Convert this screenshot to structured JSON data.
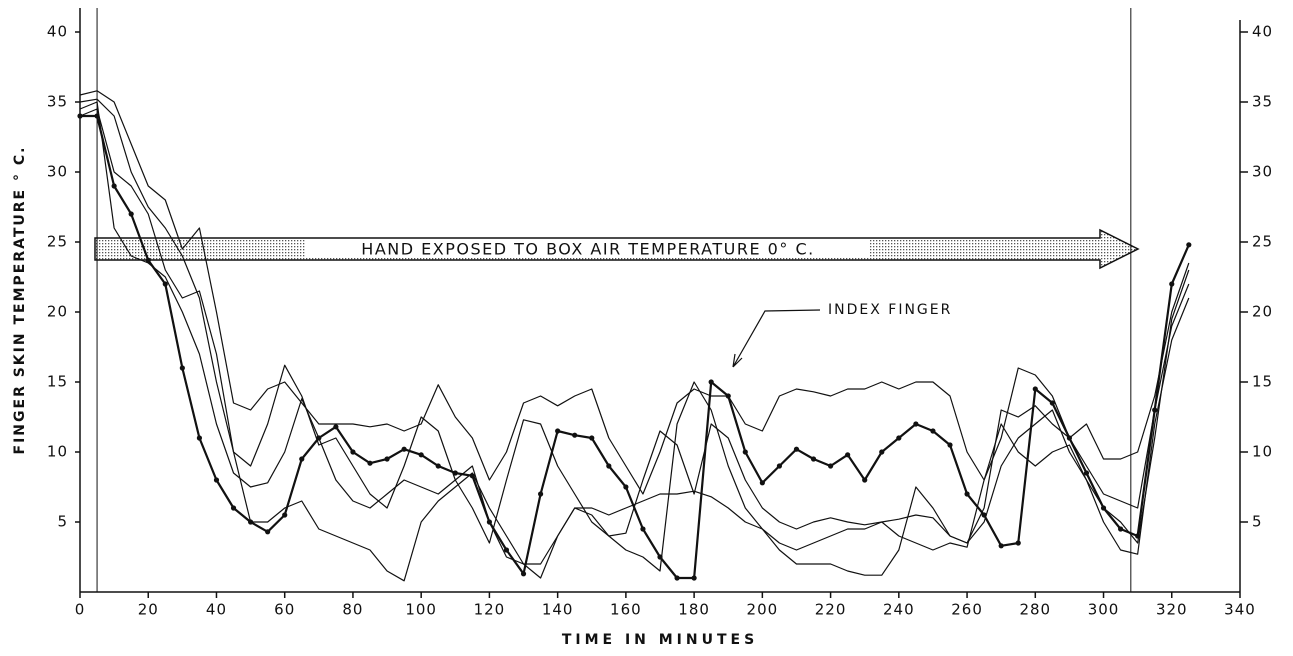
{
  "chart_data": {
    "type": "line",
    "y_label": "FINGER SKIN TEMPERATURE  ° C.",
    "x_label": "TIME IN MINUTES",
    "annotations": [
      "HAND EXPOSED TO BOX AIR TEMPERATURE  0° C.",
      "INDEX FINGER"
    ],
    "x": [
      0,
      5,
      10,
      15,
      20,
      25,
      30,
      35,
      40,
      45,
      50,
      55,
      60,
      65,
      70,
      75,
      80,
      85,
      90,
      95,
      100,
      105,
      110,
      115,
      120,
      125,
      130,
      135,
      140,
      145,
      150,
      155,
      160,
      165,
      170,
      175,
      180,
      185,
      190,
      195,
      200,
      205,
      210,
      215,
      220,
      225,
      230,
      235,
      240,
      245,
      250,
      255,
      260,
      265,
      270,
      275,
      280,
      285,
      290,
      295,
      300,
      305,
      310,
      315,
      320,
      325
    ],
    "vlines": [
      5,
      308
    ],
    "series": [
      {
        "name": "INDEX FINGER",
        "color": "#111111",
        "markers": true,
        "values": [
          34,
          34,
          29,
          27,
          23.7,
          22,
          16,
          11,
          8,
          6,
          5,
          4.3,
          5.5,
          9.5,
          11,
          11.8,
          10,
          9.2,
          9.5,
          10.2,
          9.8,
          9,
          8.5,
          8.3,
          5,
          3,
          1.3,
          7,
          11.5,
          11.2,
          11,
          9,
          7.5,
          4.5,
          2.5,
          1,
          1,
          15,
          14,
          10,
          7.8,
          9,
          10.2,
          9.5,
          9,
          9.8,
          8,
          10,
          11,
          12,
          11.5,
          10.5,
          7,
          5.5,
          3.3,
          3.5,
          14.5,
          13.5,
          11,
          8.5,
          6,
          4.5,
          4,
          13,
          22,
          24.8
        ]
      },
      {
        "color": "#111111",
        "values": [
          35.5,
          35.8,
          35,
          32,
          29,
          28,
          24.5,
          26,
          20,
          13.5,
          13,
          14.5,
          15,
          13.5,
          12,
          12,
          12,
          11.8,
          12,
          11.5,
          12,
          14.8,
          12.5,
          11,
          8,
          10,
          13.5,
          14,
          13.3,
          14,
          14.5,
          11,
          9,
          7,
          10,
          13.5,
          14.5,
          14,
          14,
          12,
          11.5,
          14,
          14.5,
          14.3,
          14,
          14.5,
          14.5,
          15,
          14.5,
          15,
          15,
          14,
          10,
          8,
          11,
          16,
          15.5,
          14,
          11,
          12,
          9.5,
          9.5,
          10,
          14,
          20,
          23.5
        ]
      },
      {
        "color": "#111111",
        "values": [
          35,
          35.2,
          34,
          30,
          27.5,
          26,
          24,
          21,
          15,
          10,
          9,
          12,
          16.2,
          14,
          10.5,
          11,
          9,
          7,
          6,
          9,
          12.5,
          11.5,
          8,
          6,
          3.5,
          8,
          12.3,
          12,
          9,
          7,
          5,
          4,
          3,
          2.5,
          1.5,
          12,
          15,
          13,
          9,
          6,
          4.5,
          3.5,
          3,
          3.5,
          4,
          4.5,
          4.5,
          5,
          5.2,
          5.5,
          5.3,
          4,
          3.5,
          6,
          13,
          12.5,
          13.3,
          12,
          11,
          9,
          7,
          6.5,
          6,
          13,
          19,
          22
        ]
      },
      {
        "color": "#111111",
        "values": [
          34.5,
          35,
          26,
          24,
          23.5,
          22.5,
          20,
          17,
          12,
          8.5,
          7.5,
          7.8,
          10,
          13.8,
          11,
          8,
          6.5,
          6,
          7,
          8,
          7.5,
          7,
          8,
          9,
          5,
          2.5,
          2,
          1,
          4,
          6,
          5.5,
          4,
          4.2,
          8,
          11.5,
          10.5,
          7,
          12,
          11,
          8,
          6,
          5,
          4.5,
          5,
          5.3,
          5,
          4.8,
          5,
          4,
          3.5,
          3,
          3.5,
          3.2,
          8,
          12,
          10,
          9,
          10,
          10.5,
          8,
          5,
          3,
          2.7,
          12,
          18,
          21
        ]
      },
      {
        "color": "#111111",
        "values": [
          34,
          34.5,
          30,
          29,
          27,
          23,
          21,
          21.5,
          17,
          10,
          5,
          5,
          6,
          6.5,
          4.5,
          4,
          3.5,
          3,
          1.5,
          0.8,
          5,
          6.5,
          7.5,
          8.5,
          6,
          4,
          2,
          2,
          4,
          6,
          6,
          5.5,
          6,
          6.5,
          7,
          7,
          7.2,
          6.8,
          6,
          5,
          4.5,
          3,
          2,
          2,
          2,
          1.5,
          1.2,
          1.2,
          3,
          7.5,
          6,
          4,
          3.5,
          5,
          9,
          11,
          12,
          13,
          10,
          8,
          6,
          5,
          3.5,
          11,
          19.5,
          23
        ]
      }
    ],
    "xlim": [
      0,
      340
    ],
    "xticks": [
      0,
      20,
      40,
      60,
      80,
      100,
      120,
      140,
      160,
      180,
      200,
      220,
      240,
      260,
      280,
      300,
      320,
      340
    ],
    "ylim": [
      0,
      40
    ],
    "yticks": [
      5,
      10,
      15,
      20,
      25,
      30,
      35,
      40
    ],
    "y2lim": [
      0,
      40
    ],
    "y2ticks": [
      5,
      10,
      15,
      20,
      25,
      30,
      35,
      40
    ]
  }
}
